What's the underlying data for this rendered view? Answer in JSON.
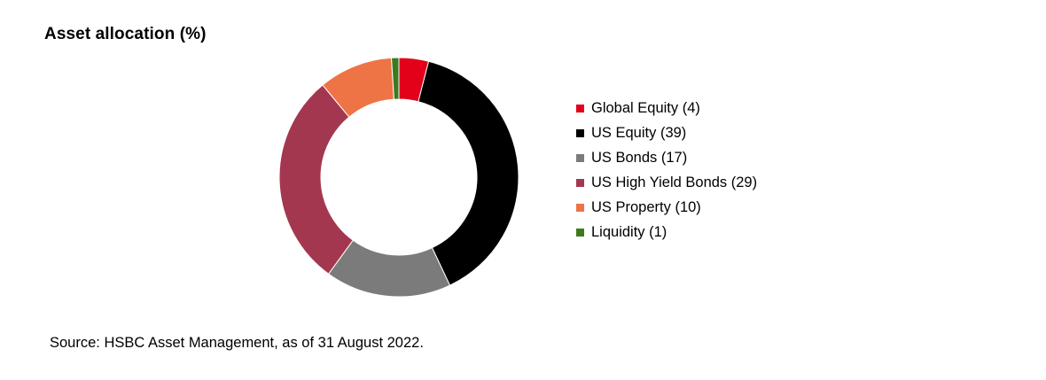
{
  "chart_data": {
    "type": "pie",
    "variant": "donut",
    "title": "Asset allocation (%)",
    "categories": [
      "Global Equity",
      "US Equity",
      "US Bonds",
      "US High Yield Bonds",
      "US Property",
      "Liquidity"
    ],
    "values": [
      4,
      39,
      17,
      29,
      10,
      1
    ],
    "legend_labels": [
      "Global Equity (4)",
      "US Equity (39)",
      "US Bonds (17)",
      "US High Yield Bonds (29)",
      "US Property (10)",
      "Liquidity (1)"
    ],
    "colors": [
      "#e3001b",
      "#000000",
      "#7b7b7b",
      "#a43750",
      "#ee7446",
      "#3d7a1f"
    ],
    "legend_placement": "right",
    "source": "Source: HSBC Asset Management, as of 31 August 2022."
  }
}
